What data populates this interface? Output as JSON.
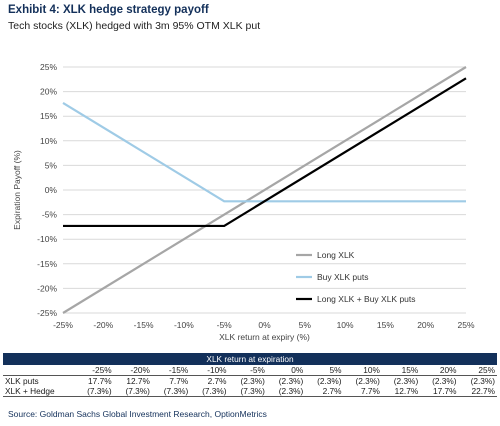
{
  "title": "Exhibit 4: XLK hedge strategy payoff",
  "subtitle": "Tech stocks (XLK) hedged with 3m 95% OTM XLK put",
  "chart_data": {
    "type": "line",
    "xlabel": "XLK return at expiry (%)",
    "ylabel": "Expiration Payoff (%)",
    "xlim": [
      -25,
      25
    ],
    "ylim": [
      -25,
      25
    ],
    "x_ticks": [
      "-25%",
      "-20%",
      "-15%",
      "-10%",
      "-5%",
      "0%",
      "5%",
      "10%",
      "15%",
      "20%",
      "25%"
    ],
    "y_ticks": [
      "25%",
      "20%",
      "15%",
      "10%",
      "5%",
      "0%",
      "-5%",
      "-10%",
      "-15%",
      "-20%",
      "-25%"
    ],
    "grid": "horizontal",
    "legend_position": "lower-right",
    "series": [
      {
        "name": "Long XLK",
        "color": "#a6a6a6",
        "x": [
          -25,
          25
        ],
        "y": [
          -25,
          25
        ]
      },
      {
        "name": "Buy XLK puts",
        "color": "#9fcbe6",
        "x": [
          -25,
          -5,
          25
        ],
        "y": [
          17.7,
          -2.3,
          -2.3
        ]
      },
      {
        "name": "Long XLK + Buy XLK puts",
        "color": "#000000",
        "x": [
          -25,
          -5,
          25
        ],
        "y": [
          -7.3,
          -7.3,
          22.7
        ]
      }
    ]
  },
  "table": {
    "header": "XLK return at expiration",
    "columns": [
      "-25%",
      "-20%",
      "-15%",
      "-10%",
      "-5%",
      "0%",
      "5%",
      "10%",
      "15%",
      "20%",
      "25%"
    ],
    "rows": [
      {
        "label": "XLK puts",
        "values": [
          "17.7%",
          "12.7%",
          "7.7%",
          "2.7%",
          "(2.3%)",
          "(2.3%)",
          "(2.3%)",
          "(2.3%)",
          "(2.3%)",
          "(2.3%)",
          "(2.3%)"
        ]
      },
      {
        "label": "XLK + Hedge",
        "values": [
          "(7.3%)",
          "(7.3%)",
          "(7.3%)",
          "(7.3%)",
          "(7.3%)",
          "(2.3%)",
          "2.7%",
          "7.7%",
          "12.7%",
          "17.7%",
          "22.7%"
        ]
      }
    ]
  },
  "source": "Source: Goldman Sachs Global Investment Research, OptionMetrics"
}
